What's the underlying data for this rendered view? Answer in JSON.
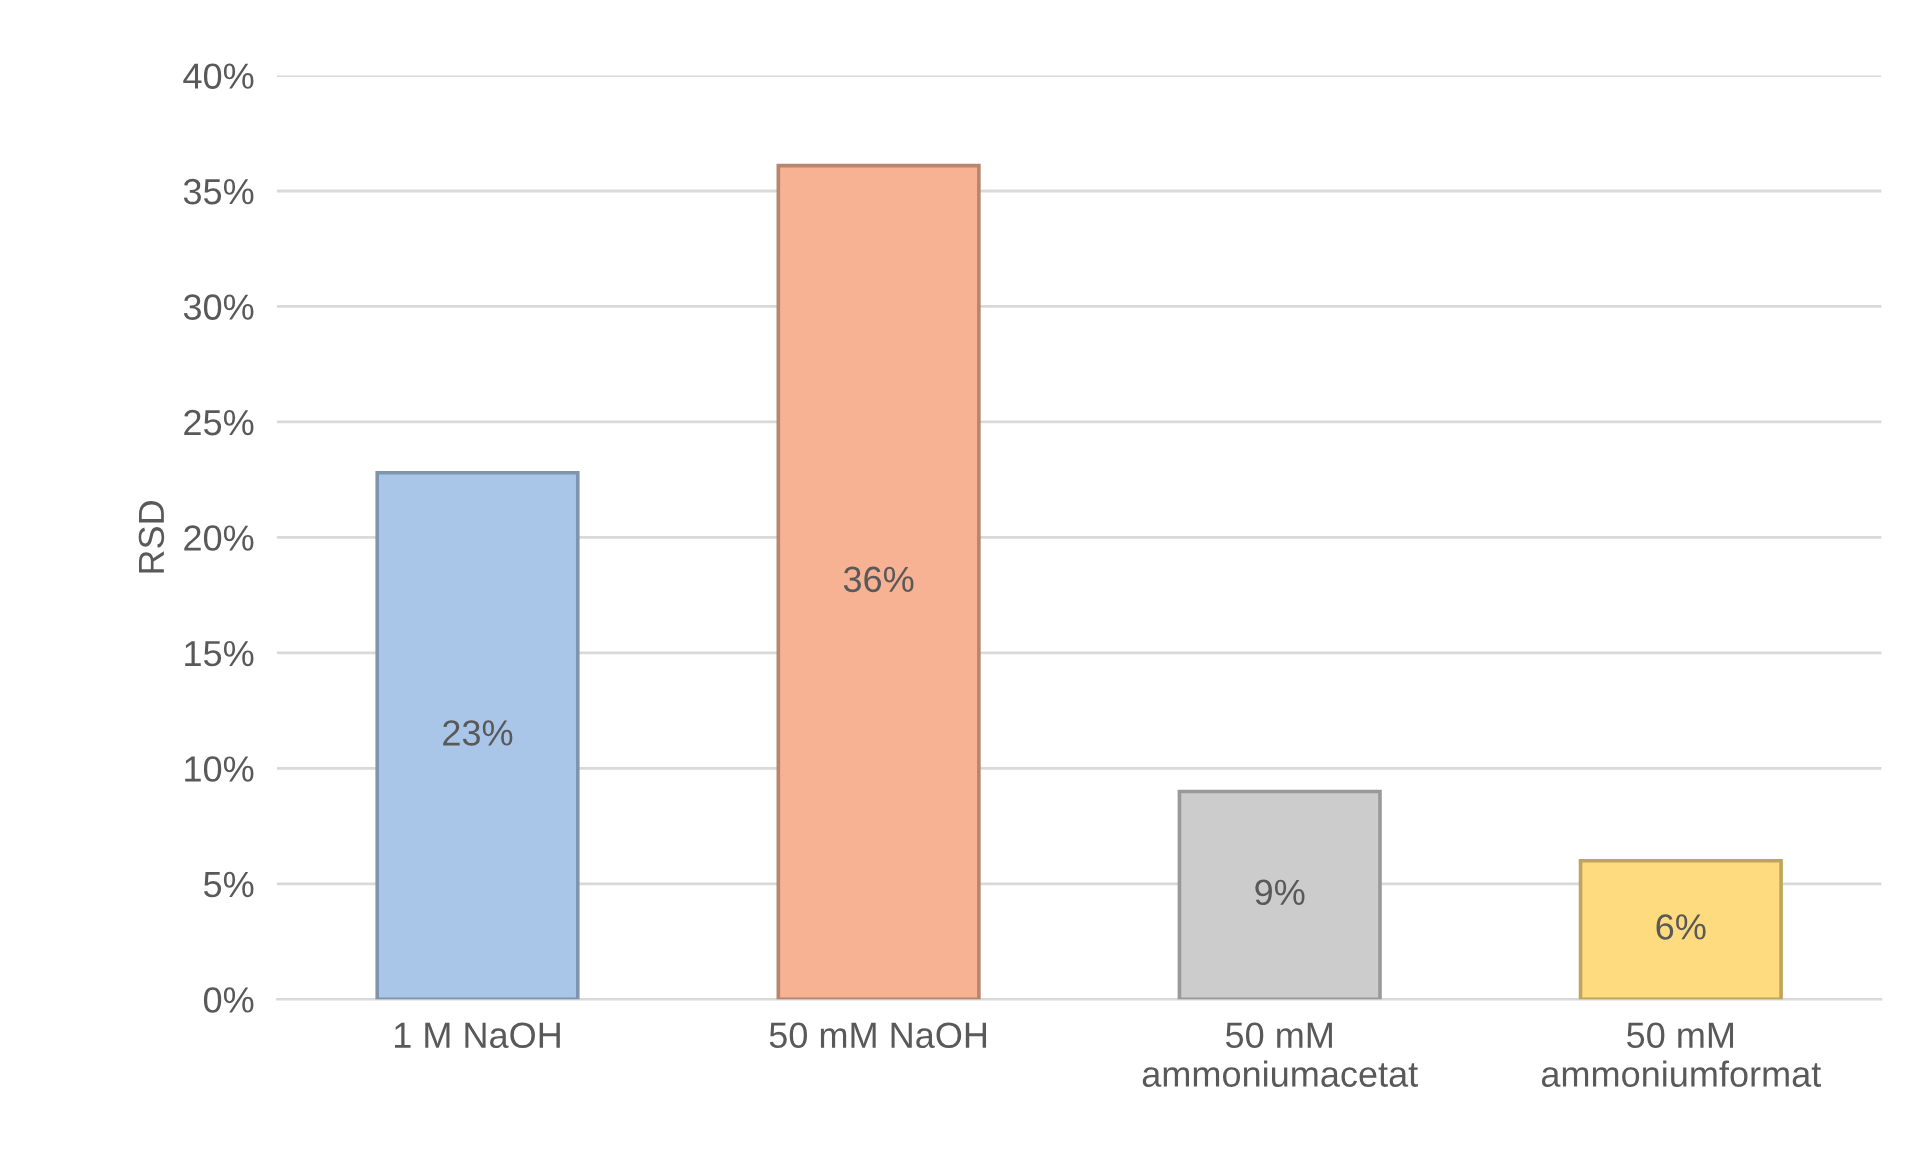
{
  "chart_data": {
    "type": "bar",
    "ylabel": "RSD",
    "categories": [
      "1 M NaOH",
      "50 mM NaOH",
      "50 mM\nammoniumacetat",
      "50 mM\nammoniumformat"
    ],
    "values": [
      22.8,
      36.1,
      9,
      6
    ],
    "value_labels": [
      "23%",
      "36%",
      "9%",
      "6%"
    ],
    "colors": [
      "#a9c6e8",
      "#f6b293",
      "#cccccc",
      "#ffdb7f"
    ],
    "ylim": [
      0,
      40
    ],
    "yticks": [
      {
        "value": 0,
        "label": "0%"
      },
      {
        "value": 5,
        "label": "5%"
      },
      {
        "value": 10,
        "label": "10%"
      },
      {
        "value": 15,
        "label": "15%"
      },
      {
        "value": 20,
        "label": "20%"
      },
      {
        "value": 25,
        "label": "25%"
      },
      {
        "value": 30,
        "label": "30%"
      },
      {
        "value": 35,
        "label": "35%"
      },
      {
        "value": 40,
        "label": "40%"
      }
    ],
    "grid": "y"
  }
}
